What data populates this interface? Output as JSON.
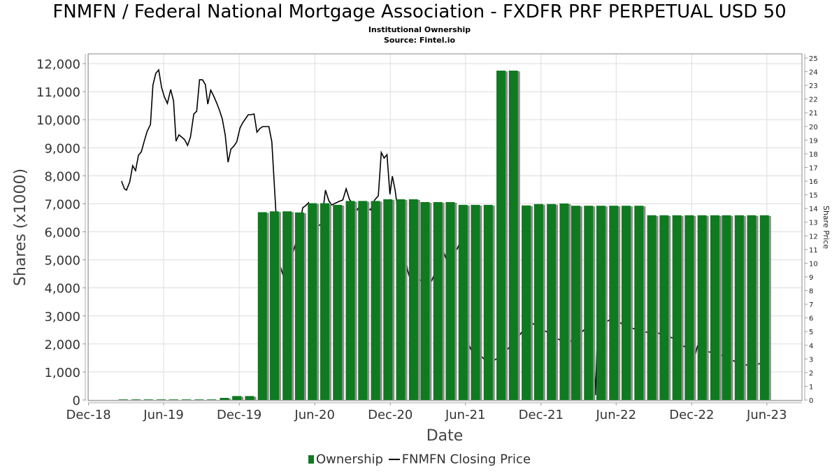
{
  "chart_data": {
    "type": "bar+line",
    "title": "FNMFN / Federal National Mortgage Association - FXDFR PRF PERPETUAL USD 50",
    "subtitle": "Institutional Ownership",
    "source": "Source: Fintel.io",
    "xlabel": "Date",
    "ylabel": "Shares (x1000)",
    "y2label": "Share Price",
    "xlim": [
      "2018-11-30",
      "2023-08-25"
    ],
    "ylim": [
      0,
      12000
    ],
    "y2lim": [
      0,
      25
    ],
    "grid": true,
    "legend_position": "bottom",
    "x_ticks": [
      {
        "date": "2018-12-01",
        "label": "Dec-18"
      },
      {
        "date": "2019-06-01",
        "label": "Jun-19"
      },
      {
        "date": "2019-12-01",
        "label": "Dec-19"
      },
      {
        "date": "2020-06-01",
        "label": "Jun-20"
      },
      {
        "date": "2020-12-01",
        "label": "Dec-20"
      },
      {
        "date": "2021-06-01",
        "label": "Jun-21"
      },
      {
        "date": "2021-12-01",
        "label": "Dec-21"
      },
      {
        "date": "2022-06-01",
        "label": "Jun-22"
      },
      {
        "date": "2022-12-01",
        "label": "Dec-22"
      },
      {
        "date": "2023-06-01",
        "label": "Jun-23"
      }
    ],
    "y_ticks": [
      "0",
      "1,000",
      "2,000",
      "3,000",
      "4,000",
      "5,000",
      "6,000",
      "7,000",
      "8,000",
      "9,000",
      "10,000",
      "11,000",
      "12,000"
    ],
    "y2_ticks": [
      "0",
      "1",
      "2",
      "3",
      "4",
      "5",
      "6",
      "7",
      "8",
      "9",
      "10",
      "11",
      "12",
      "13",
      "14",
      "15",
      "16",
      "17",
      "18",
      "19",
      "20",
      "21",
      "22",
      "23",
      "24",
      "25"
    ],
    "colors": {
      "ownership": "#0f7a1f",
      "price": "#000000",
      "bar_shadow": "#8c8c8c"
    },
    "series": [
      {
        "name": "Ownership",
        "type": "bar",
        "axis": "left",
        "dates": [
          "2019-03",
          "2019-04",
          "2019-05",
          "2019-06",
          "2019-07",
          "2019-08",
          "2019-09",
          "2019-10",
          "2019-11",
          "2019-12",
          "2020-01",
          "2020-02",
          "2020-03",
          "2020-04",
          "2020-05",
          "2020-06",
          "2020-07",
          "2020-08",
          "2020-09",
          "2020-10",
          "2020-11",
          "2020-12",
          "2021-01",
          "2021-02",
          "2021-03",
          "2021-04",
          "2021-05",
          "2021-06",
          "2021-07",
          "2021-08",
          "2021-09",
          "2021-10",
          "2021-11",
          "2021-12",
          "2022-01",
          "2022-02",
          "2022-03",
          "2022-04",
          "2022-05",
          "2022-06",
          "2022-07",
          "2022-08",
          "2022-09",
          "2022-10",
          "2022-11",
          "2022-12",
          "2023-01",
          "2023-02",
          "2023-03",
          "2023-04",
          "2023-05",
          "2023-06"
        ],
        "values": [
          20,
          20,
          20,
          20,
          20,
          20,
          20,
          20,
          75,
          140,
          140,
          6700,
          6730,
          6730,
          6690,
          7020,
          7020,
          6960,
          7100,
          7100,
          7100,
          7160,
          7160,
          7160,
          7060,
          7060,
          7060,
          6960,
          6960,
          6960,
          11750,
          11750,
          6940,
          6990,
          6990,
          7010,
          6930,
          6930,
          6930,
          6930,
          6930,
          6930,
          6590,
          6590,
          6590,
          6590,
          6590,
          6590,
          6590,
          6590,
          6590,
          6590
        ]
      },
      {
        "name": "FNMFN Closing Price",
        "type": "line",
        "axis": "right",
        "points": [
          [
            "2019-02-19",
            16.0
          ],
          [
            "2019-02-26",
            15.44
          ],
          [
            "2019-03-03",
            15.34
          ],
          [
            "2019-03-11",
            15.95
          ],
          [
            "2019-03-18",
            17.13
          ],
          [
            "2019-03-25",
            16.77
          ],
          [
            "2019-04-01",
            17.89
          ],
          [
            "2019-04-08",
            18.15
          ],
          [
            "2019-04-15",
            18.92
          ],
          [
            "2019-04-22",
            19.63
          ],
          [
            "2019-04-30",
            20.14
          ],
          [
            "2019-05-06",
            23.01
          ],
          [
            "2019-05-13",
            23.88
          ],
          [
            "2019-05-20",
            24.13
          ],
          [
            "2019-05-27",
            22.85
          ],
          [
            "2019-06-03",
            22.14
          ],
          [
            "2019-06-10",
            21.68
          ],
          [
            "2019-06-18",
            22.7
          ],
          [
            "2019-06-25",
            21.88
          ],
          [
            "2019-07-01",
            18.92
          ],
          [
            "2019-07-08",
            19.38
          ],
          [
            "2019-07-15",
            19.22
          ],
          [
            "2019-07-22",
            19.02
          ],
          [
            "2019-07-29",
            18.61
          ],
          [
            "2019-08-05",
            19.22
          ],
          [
            "2019-08-13",
            20.91
          ],
          [
            "2019-08-20",
            21.11
          ],
          [
            "2019-08-27",
            23.41
          ],
          [
            "2019-09-03",
            23.41
          ],
          [
            "2019-09-10",
            23.06
          ],
          [
            "2019-09-16",
            21.63
          ],
          [
            "2019-09-23",
            22.65
          ],
          [
            "2019-09-30",
            22.24
          ],
          [
            "2019-10-08",
            21.68
          ],
          [
            "2019-10-15",
            21.11
          ],
          [
            "2019-10-21",
            20.55
          ],
          [
            "2019-10-28",
            19.38
          ],
          [
            "2019-11-04",
            17.38
          ],
          [
            "2019-11-11",
            18.35
          ],
          [
            "2019-11-18",
            18.56
          ],
          [
            "2019-11-25",
            18.87
          ],
          [
            "2019-12-03",
            19.89
          ],
          [
            "2019-12-09",
            20.25
          ],
          [
            "2019-12-16",
            20.55
          ],
          [
            "2019-12-23",
            20.86
          ],
          [
            "2019-12-30",
            20.86
          ],
          [
            "2020-01-06",
            20.91
          ],
          [
            "2020-01-13",
            19.58
          ],
          [
            "2020-01-20",
            19.84
          ],
          [
            "2020-01-27",
            19.99
          ],
          [
            "2020-02-04",
            19.99
          ],
          [
            "2020-02-11",
            19.99
          ],
          [
            "2020-02-18",
            18.87
          ],
          [
            "2020-02-28",
            13.68
          ],
          [
            "2020-03-09",
            9.82
          ],
          [
            "2020-03-16",
            9.15
          ],
          [
            "2020-03-30",
            10.0
          ],
          [
            "2020-04-10",
            10.84
          ],
          [
            "2020-04-15",
            11.35
          ],
          [
            "2020-05-03",
            14.06
          ],
          [
            "2020-05-10",
            14.21
          ],
          [
            "2020-05-17",
            14.42
          ],
          [
            "2020-05-31",
            13.0
          ],
          [
            "2020-06-10",
            12.73
          ],
          [
            "2020-06-17",
            12.88
          ],
          [
            "2020-06-27",
            15.34
          ],
          [
            "2020-07-05",
            14.57
          ],
          [
            "2020-07-12",
            14.26
          ],
          [
            "2020-07-30",
            14.52
          ],
          [
            "2020-08-08",
            14.62
          ],
          [
            "2020-08-16",
            15.44
          ],
          [
            "2020-08-24",
            14.67
          ],
          [
            "2020-09-12",
            13.9
          ],
          [
            "2020-09-19",
            14.26
          ],
          [
            "2020-10-14",
            13.9
          ],
          [
            "2020-10-24",
            14.62
          ],
          [
            "2020-11-02",
            14.93
          ],
          [
            "2020-11-09",
            18.1
          ],
          [
            "2020-11-16",
            17.69
          ],
          [
            "2020-11-23",
            17.94
          ],
          [
            "2020-11-30",
            15.03
          ],
          [
            "2020-12-06",
            16.36
          ],
          [
            "2020-12-13",
            15.29
          ],
          [
            "2020-12-21",
            13.34
          ],
          [
            "2021-01-12",
            9.46
          ],
          [
            "2021-01-17",
            8.94
          ],
          [
            "2021-02-10",
            8.79
          ],
          [
            "2021-02-15",
            8.69
          ],
          [
            "2021-03-11",
            8.69
          ],
          [
            "2021-04-09",
            10.84
          ],
          [
            "2021-04-17",
            10.17
          ],
          [
            "2021-05-12",
            11.04
          ],
          [
            "2021-05-17",
            11.4
          ],
          [
            "2021-06-09",
            4.04
          ],
          [
            "2021-06-16",
            3.58
          ],
          [
            "2021-07-10",
            3.17
          ],
          [
            "2021-07-19",
            2.91
          ],
          [
            "2021-08-02",
            2.76
          ],
          [
            "2021-08-19",
            3.07
          ],
          [
            "2021-09-10",
            3.68
          ],
          [
            "2021-09-22",
            4.09
          ],
          [
            "2021-10-09",
            4.7
          ],
          [
            "2021-11-04",
            5.73
          ],
          [
            "2021-11-30",
            5.21
          ],
          [
            "2021-12-27",
            4.8
          ],
          [
            "2022-01-11",
            4.45
          ],
          [
            "2022-02-06",
            4.19
          ],
          [
            "2022-03-01",
            4.7
          ],
          [
            "2022-03-18",
            5.21
          ],
          [
            "2022-04-04",
            6.24
          ],
          [
            "2022-04-12",
            0.36
          ],
          [
            "2022-04-17",
            5.21
          ],
          [
            "2022-05-08",
            5.73
          ],
          [
            "2022-05-25",
            5.98
          ],
          [
            "2022-06-20",
            5.47
          ],
          [
            "2022-07-14",
            5.21
          ],
          [
            "2022-08-09",
            4.96
          ],
          [
            "2022-09-04",
            4.96
          ],
          [
            "2022-09-30",
            4.7
          ],
          [
            "2022-10-24",
            4.45
          ],
          [
            "2022-11-11",
            3.94
          ],
          [
            "2022-11-28",
            3.68
          ],
          [
            "2022-12-06",
            2.91
          ],
          [
            "2022-12-15",
            3.94
          ],
          [
            "2023-01-01",
            3.58
          ],
          [
            "2023-01-27",
            3.43
          ],
          [
            "2023-02-21",
            3.17
          ],
          [
            "2023-03-19",
            2.76
          ],
          [
            "2023-04-11",
            2.56
          ],
          [
            "2023-05-08",
            2.61
          ],
          [
            "2023-05-16",
            2.66
          ]
        ]
      }
    ]
  }
}
